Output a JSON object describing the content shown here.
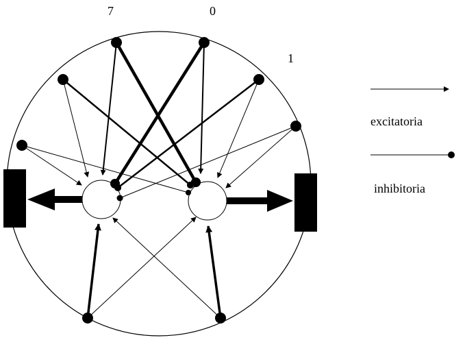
{
  "diagram": {
    "sensor_labels": {
      "s7": "7",
      "s0": "0",
      "s1": "1"
    },
    "legend": {
      "excitatory_label": "excitatoria",
      "inhibitory_label": "inhibitoria"
    },
    "colors": {
      "stroke": "#000000",
      "background": "#ffffff",
      "neuron_fill": "#ffffff",
      "motor_fill": "#000000"
    }
  }
}
